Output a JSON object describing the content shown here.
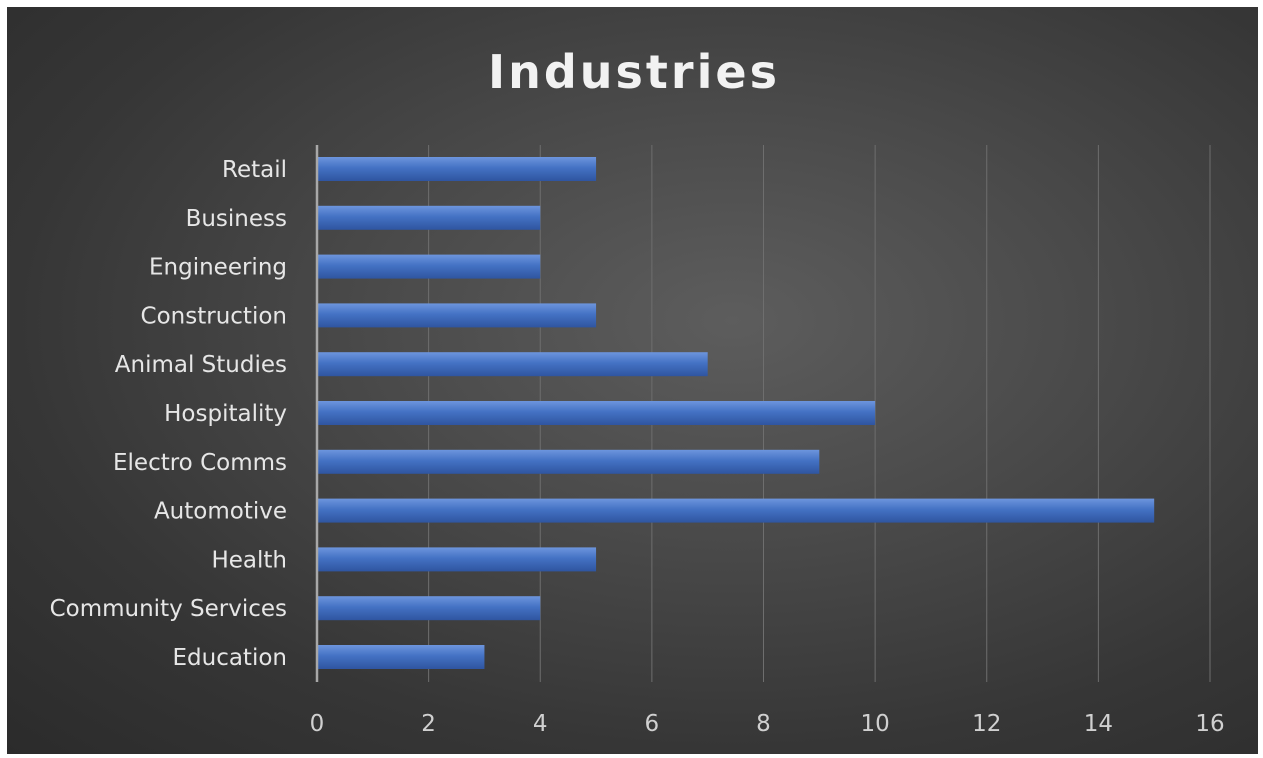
{
  "chart_data": {
    "type": "bar",
    "orientation": "horizontal",
    "title": "Industries",
    "xlabel": "",
    "ylabel": "",
    "categories": [
      "Retail",
      "Business",
      "Engineering",
      "Construction",
      "Animal Studies",
      "Hospitality",
      "Electro Comms",
      "Automotive",
      "Health",
      "Community Services",
      "Education"
    ],
    "values": [
      5,
      4,
      4,
      5,
      7,
      10,
      9,
      15,
      5,
      4,
      3
    ],
    "xlim": [
      0,
      16
    ],
    "xticks": [
      "0",
      "2",
      "4",
      "6",
      "8",
      "10",
      "12",
      "14",
      "16"
    ],
    "grid": "vertical",
    "legend": "none",
    "colors": {
      "bar": "#4472c4",
      "bar_light": "#6d95dd",
      "bar_dark": "#2f55a0",
      "background": "#404040",
      "text": "#e6e6e6"
    }
  }
}
